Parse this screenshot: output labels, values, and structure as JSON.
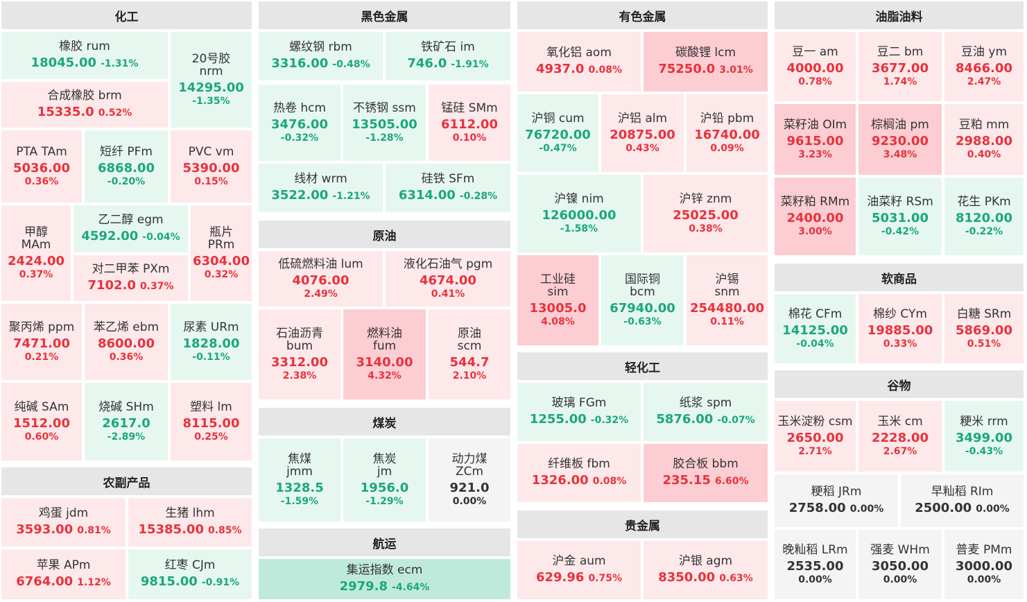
{
  "colors": {
    "up": "#e8323c",
    "down": "#1aa878",
    "flat": "#333333",
    "up_light_bg": "#fde8ea",
    "up_strong_bg": "#fccdd2",
    "down_light_bg": "#e6f7f0",
    "down_strong_bg": "#bfeadb",
    "flat_bg": "#f4f4f4",
    "section_bg": "#e6e6e6"
  },
  "sections": {
    "chemical": "化工",
    "ferrous": "黑色金属",
    "nonferrous": "有色金属",
    "oils": "油脂油料",
    "crude": "原油",
    "soft": "软商品",
    "light_chem": "轻化工",
    "grains": "谷物",
    "coal": "煤炭",
    "agri": "农副产品",
    "precious": "贵金属",
    "shipping": "航运"
  },
  "t": {
    "rum": {
      "name": "橡胶 rum",
      "price": "18045.00",
      "change": "-1.31%"
    },
    "nrm": {
      "name1": "20号胶",
      "name2": "nrm",
      "price": "14295.00",
      "change": "-1.35%"
    },
    "brm": {
      "name": "合成橡胶 brm",
      "price": "15335.0",
      "change": "0.52%"
    },
    "tam": {
      "name": "PTA TAm",
      "price": "5036.00",
      "change": "0.36%"
    },
    "pfm": {
      "name": "短纤 PFm",
      "price": "6868.00",
      "change": "-0.20%"
    },
    "vm": {
      "name": "PVC vm",
      "price": "5390.00",
      "change": "0.15%"
    },
    "mam": {
      "name1": "甲醇",
      "name2": "MAm",
      "price": "2424.00",
      "change": "0.37%"
    },
    "egm": {
      "name": "乙二醇 egm",
      "price": "4592.00",
      "change": "-0.04%"
    },
    "prm": {
      "name1": "瓶片",
      "name2": "PRm",
      "price": "6304.00",
      "change": "0.32%"
    },
    "pxm": {
      "name": "对二甲苯 PXm",
      "price": "7102.0",
      "change": "0.37%"
    },
    "ppm": {
      "name": "聚丙烯 ppm",
      "price": "7471.00",
      "change": "0.21%"
    },
    "ebm": {
      "name": "苯乙烯 ebm",
      "price": "8600.00",
      "change": "0.36%"
    },
    "urm": {
      "name": "尿素 URm",
      "price": "1828.00",
      "change": "-0.11%"
    },
    "sam": {
      "name": "纯碱 SAm",
      "price": "1512.00",
      "change": "0.60%"
    },
    "shm": {
      "name": "烧碱 SHm",
      "price": "2617.0",
      "change": "-2.89%"
    },
    "lm": {
      "name": "塑料 lm",
      "price": "8115.00",
      "change": "0.25%"
    },
    "jdm": {
      "name": "鸡蛋 jdm",
      "price": "3593.00",
      "change": "0.81%"
    },
    "lhm": {
      "name": "生猪 lhm",
      "price": "15385.00",
      "change": "0.85%"
    },
    "apm": {
      "name": "苹果 APm",
      "price": "6764.00",
      "change": "1.12%"
    },
    "cjm": {
      "name": "红枣 CJm",
      "price": "9815.00",
      "change": "-0.91%"
    },
    "rbm": {
      "name": "螺纹钢 rbm",
      "price": "3316.00",
      "change": "-0.48%"
    },
    "im": {
      "name": "铁矿石 im",
      "price": "746.0",
      "change": "-1.91%"
    },
    "hcm": {
      "name": "热卷 hcm",
      "price": "3476.00",
      "change": "-0.32%"
    },
    "ssm": {
      "name": "不锈钢 ssm",
      "price": "13505.00",
      "change": "-1.28%"
    },
    "smm": {
      "name": "锰硅 SMm",
      "price": "6112.00",
      "change": "0.10%"
    },
    "wrm": {
      "name": "线材 wrm",
      "price": "3522.00",
      "change": "-1.21%"
    },
    "sfm": {
      "name": "硅铁 SFm",
      "price": "6314.00",
      "change": "-0.28%"
    },
    "lum": {
      "name": "低硫燃料油 lum",
      "price": "4076.00",
      "change": "2.49%"
    },
    "pgm": {
      "name": "液化石油气 pgm",
      "price": "4674.00",
      "change": "0.41%"
    },
    "bum": {
      "name1": "石油沥青",
      "name2": "bum",
      "price": "3312.00",
      "change": "2.38%"
    },
    "fum": {
      "name1": "燃料油",
      "name2": "fum",
      "price": "3140.00",
      "change": "4.32%"
    },
    "scm": {
      "name1": "原油",
      "name2": "scm",
      "price": "544.7",
      "change": "2.10%"
    },
    "jmm": {
      "name1": "焦煤",
      "name2": "jmm",
      "price": "1328.5",
      "change": "-1.59%"
    },
    "jm": {
      "name1": "焦炭",
      "name2": "jm",
      "price": "1956.0",
      "change": "-1.29%"
    },
    "zcm": {
      "name1": "动力煤",
      "name2": "ZCm",
      "price": "921.0",
      "change": "0.00%"
    },
    "ecm": {
      "name": "集运指数 ecm",
      "price": "2979.8",
      "change": "-4.64%"
    },
    "aom": {
      "name": "氧化铝 aom",
      "price": "4937.0",
      "change": "0.08%"
    },
    "lcm": {
      "name": "碳酸锂 lcm",
      "price": "75250.0",
      "change": "3.01%"
    },
    "cum": {
      "name": "沪铜 cum",
      "price": "76720.00",
      "change": "-0.47%"
    },
    "alm": {
      "name": "沪铝 alm",
      "price": "20875.00",
      "change": "0.43%"
    },
    "pbm": {
      "name": "沪铅 pbm",
      "price": "16740.00",
      "change": "0.09%"
    },
    "nim": {
      "name": "沪镍 nim",
      "price": "126000.00",
      "change": "-1.58%"
    },
    "znm": {
      "name": "沪锌 znm",
      "price": "25025.00",
      "change": "0.38%"
    },
    "sim": {
      "name1": "工业硅",
      "name2": "sim",
      "price": "13005.0",
      "change": "4.08%"
    },
    "bcm": {
      "name1": "国际铜",
      "name2": "bcm",
      "price": "67940.00",
      "change": "-0.63%"
    },
    "snm": {
      "name1": "沪锡",
      "name2": "snm",
      "price": "254480.00",
      "change": "0.11%"
    },
    "fgm": {
      "name": "玻璃 FGm",
      "price": "1255.00",
      "change": "-0.32%"
    },
    "spm": {
      "name": "纸浆 spm",
      "price": "5876.00",
      "change": "-0.07%"
    },
    "fbm": {
      "name": "纤维板 fbm",
      "price": "1326.00",
      "change": "0.08%"
    },
    "bbm": {
      "name": "胶合板 bbm",
      "price": "235.15",
      "change": "6.60%"
    },
    "aum": {
      "name": "沪金 aum",
      "price": "629.96",
      "change": "0.75%"
    },
    "agm": {
      "name": "沪银 agm",
      "price": "8350.00",
      "change": "0.63%"
    },
    "am": {
      "name": "豆一 am",
      "price": "4000.00",
      "change": "0.78%"
    },
    "bm": {
      "name": "豆二 bm",
      "price": "3677.00",
      "change": "1.74%"
    },
    "ym": {
      "name": "豆油 ym",
      "price": "8466.00",
      "change": "2.47%"
    },
    "oim": {
      "name": "菜籽油 OIm",
      "price": "9615.00",
      "change": "3.23%"
    },
    "pm": {
      "name": "棕榈油 pm",
      "price": "9230.00",
      "change": "3.48%"
    },
    "mm": {
      "name": "豆粕 mm",
      "price": "2988.00",
      "change": "0.40%"
    },
    "rmm": {
      "name": "菜籽粕 RMm",
      "price": "2400.00",
      "change": "3.00%"
    },
    "rsm": {
      "name": "油菜籽 RSm",
      "price": "5031.00",
      "change": "-0.42%"
    },
    "pkm": {
      "name": "花生 PKm",
      "price": "8120.00",
      "change": "-0.22%"
    },
    "cfm": {
      "name": "棉花 CFm",
      "price": "14125.00",
      "change": "-0.04%"
    },
    "cym": {
      "name": "棉纱 CYm",
      "price": "19885.00",
      "change": "0.33%"
    },
    "srm": {
      "name": "白糖 SRm",
      "price": "5869.00",
      "change": "0.51%"
    },
    "csm": {
      "name": "玉米淀粉 csm",
      "price": "2650.00",
      "change": "2.71%"
    },
    "cm": {
      "name": "玉米 cm",
      "price": "2228.00",
      "change": "2.67%"
    },
    "rrm": {
      "name": "粳米 rrm",
      "price": "3499.00",
      "change": "-0.43%"
    },
    "jrm": {
      "name": "粳稻 JRm",
      "price": "2758.00",
      "change": "0.00%"
    },
    "rim": {
      "name": "早籼稻 RIm",
      "price": "2500.00",
      "change": "0.00%"
    },
    "lrm": {
      "name": "晚籼稻 LRm",
      "price": "2535.00",
      "change": "0.00%"
    },
    "whm": {
      "name": "强麦 WHm",
      "price": "3050.00",
      "change": "0.00%"
    },
    "pmm": {
      "name": "普麦 PMm",
      "price": "3000.00",
      "change": "0.00%"
    }
  }
}
